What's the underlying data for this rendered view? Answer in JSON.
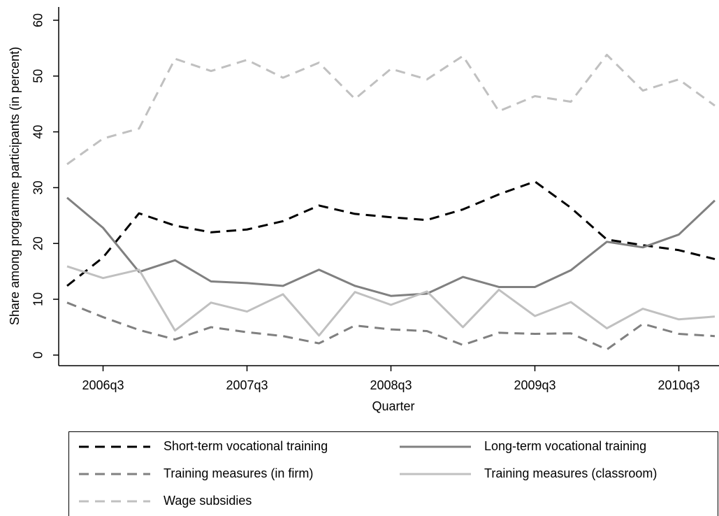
{
  "chart_data": {
    "type": "line",
    "y_label": "Share among programme participants (in percent)",
    "x_label": "Quarter",
    "categories": [
      null,
      "2006q3",
      null,
      null,
      null,
      "2007q3",
      null,
      null,
      null,
      "2008q3",
      null,
      null,
      null,
      "2009q3",
      null,
      null,
      null,
      "2010q3",
      null
    ],
    "ylim": [
      -1.9,
      62
    ],
    "yticks": [
      0,
      10,
      20,
      30,
      40,
      50,
      60
    ],
    "grid": false,
    "legend": "bottom",
    "series": [
      {
        "name": "Short-term vocational training",
        "color": "#000000",
        "style": "dashed",
        "values": [
          12.4,
          17.5,
          25.4,
          23.2,
          22.0,
          22.5,
          24.0,
          26.8,
          25.3,
          24.7,
          24.2,
          26.1,
          28.8,
          31.1,
          26.4,
          20.7,
          19.7,
          18.8,
          17.2
        ]
      },
      {
        "name": "Long-term vocational training",
        "color": "#808080",
        "style": "solid",
        "values": [
          28.2,
          22.8,
          14.9,
          17.0,
          13.2,
          12.9,
          12.4,
          15.3,
          12.4,
          10.6,
          11.0,
          14.0,
          12.2,
          12.2,
          15.2,
          20.3,
          19.3,
          21.6,
          27.7
        ]
      },
      {
        "name": "Training measures (in firm)",
        "color": "#808080",
        "style": "dashed",
        "values": [
          9.4,
          6.8,
          4.5,
          2.8,
          5.0,
          4.1,
          3.4,
          2.1,
          5.3,
          4.6,
          4.3,
          1.8,
          4.0,
          3.8,
          3.9,
          1.0,
          5.6,
          3.8,
          3.4
        ]
      },
      {
        "name": "Training measures (classroom)",
        "color": "#c0c0c0",
        "style": "solid",
        "values": [
          15.9,
          13.8,
          15.3,
          4.4,
          9.4,
          7.8,
          10.9,
          3.5,
          11.3,
          9.0,
          11.4,
          5.0,
          11.7,
          7.0,
          9.5,
          4.8,
          8.3,
          6.4,
          6.9
        ]
      },
      {
        "name": "Wage subsidies",
        "color": "#c0c0c0",
        "style": "dashed",
        "values": [
          34.2,
          38.8,
          40.6,
          53.1,
          50.9,
          52.9,
          49.7,
          52.4,
          45.9,
          51.3,
          49.4,
          53.6,
          43.7,
          46.4,
          45.4,
          53.8,
          47.4,
          49.4,
          44.7
        ]
      }
    ]
  }
}
